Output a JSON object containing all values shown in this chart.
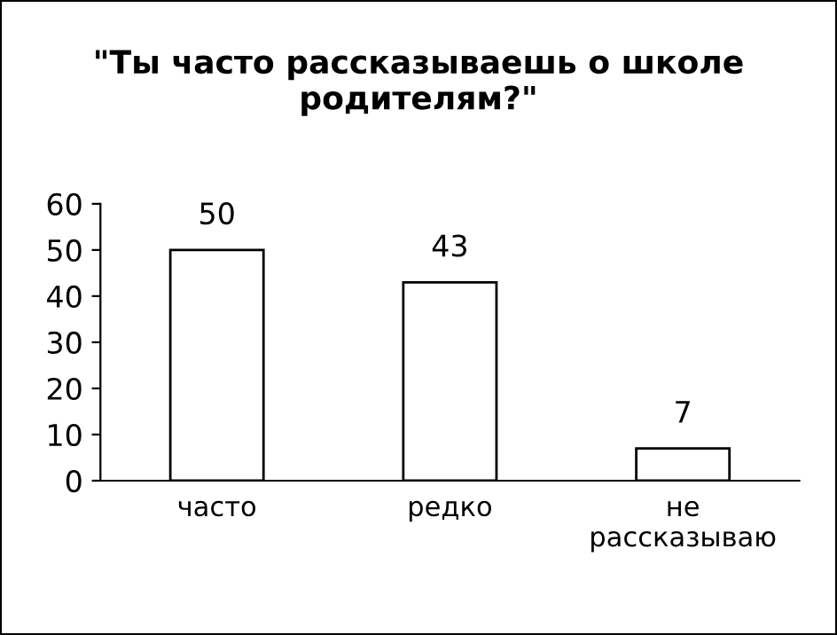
{
  "chart_data": {
    "type": "bar",
    "title": "\"Ты часто рассказываешь о школе родителям?\"",
    "categories": [
      "часто",
      "редко",
      "не рассказываю"
    ],
    "values": [
      50,
      43,
      7
    ],
    "color": "#ffffff",
    "ylim": [
      0,
      60
    ],
    "yticks": [
      0,
      10,
      20,
      30,
      40,
      50,
      60
    ],
    "grid": false,
    "data_labels": true
  }
}
